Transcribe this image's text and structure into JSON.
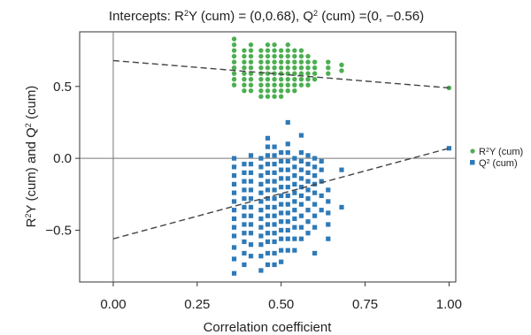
{
  "chart_data": {
    "type": "scatter",
    "title": {
      "segments": [
        {
          "t": "Intercepts: R"
        },
        {
          "t": "2",
          "sup": true
        },
        {
          "t": "Y (cum) = (0,0.68), Q"
        },
        {
          "t": "2",
          "sup": true
        },
        {
          "t": " (cum) =(0, −0.56)"
        }
      ]
    },
    "xlabel": "Correlation coefficient",
    "ylabel": {
      "segments": [
        {
          "t": "R"
        },
        {
          "t": "2",
          "sup": true
        },
        {
          "t": "Y (cum) and Q"
        },
        {
          "t": "2",
          "sup": true
        },
        {
          "t": " (cum)"
        }
      ]
    },
    "xlim": [
      -0.1,
      1.02
    ],
    "ylim": [
      -0.86,
      0.88
    ],
    "xticks": [
      {
        "value": 0.0,
        "label": "0.00"
      },
      {
        "value": 0.25,
        "label": "0.25"
      },
      {
        "value": 0.5,
        "label": "0.50"
      },
      {
        "value": 0.75,
        "label": "0.75"
      },
      {
        "value": 1.0,
        "label": "1.00"
      }
    ],
    "yticks": [
      {
        "value": 0.5,
        "label": "0.5"
      },
      {
        "value": 0.0,
        "label": "0.0"
      },
      {
        "value": -0.5,
        "label": "−0.5"
      }
    ],
    "reference_lines": {
      "x": 0,
      "y": 0
    },
    "legend_position": "right",
    "series": [
      {
        "label": {
          "segments": [
            {
              "t": "R"
            },
            {
              "t": "2",
              "sup": true
            },
            {
              "t": "Y (cum)"
            }
          ]
        },
        "marker": "circle",
        "color": "#4caf50",
        "regression": {
          "intercept": 0.68,
          "end": [
            1.0,
            0.49
          ]
        },
        "columns": [
          {
            "x": 0.36,
            "y": [
              0.83,
              0.79,
              0.75,
              0.71,
              0.67,
              0.63,
              0.59,
              0.55,
              0.51
            ]
          },
          {
            "x": 0.39,
            "y": [
              0.75,
              0.71,
              0.67,
              0.63,
              0.59,
              0.55,
              0.51,
              0.47
            ]
          },
          {
            "x": 0.41,
            "y": [
              0.79,
              0.75,
              0.71,
              0.67,
              0.63,
              0.59,
              0.55,
              0.51,
              0.47
            ]
          },
          {
            "x": 0.44,
            "y": [
              0.75,
              0.71,
              0.67,
              0.63,
              0.59,
              0.55,
              0.51,
              0.47,
              0.43
            ]
          },
          {
            "x": 0.46,
            "y": [
              0.79,
              0.75,
              0.71,
              0.67,
              0.63,
              0.59,
              0.55,
              0.51,
              0.47,
              0.43
            ]
          },
          {
            "x": 0.48,
            "y": [
              0.79,
              0.75,
              0.71,
              0.67,
              0.63,
              0.59,
              0.55,
              0.51,
              0.47,
              0.43
            ]
          },
          {
            "x": 0.5,
            "y": [
              0.75,
              0.71,
              0.67,
              0.63,
              0.59,
              0.55,
              0.51,
              0.47,
              0.43
            ]
          },
          {
            "x": 0.52,
            "y": [
              0.79,
              0.75,
              0.71,
              0.67,
              0.63,
              0.59,
              0.55,
              0.51,
              0.47
            ]
          },
          {
            "x": 0.54,
            "y": [
              0.75,
              0.71,
              0.67,
              0.63,
              0.59,
              0.55,
              0.51,
              0.47
            ]
          },
          {
            "x": 0.56,
            "y": [
              0.75,
              0.71,
              0.67,
              0.63,
              0.59,
              0.55,
              0.51
            ]
          },
          {
            "x": 0.58,
            "y": [
              0.71,
              0.67,
              0.63,
              0.59,
              0.55,
              0.51
            ]
          },
          {
            "x": 0.6,
            "y": [
              0.67,
              0.63,
              0.59,
              0.55
            ]
          },
          {
            "x": 0.64,
            "y": [
              0.67,
              0.63,
              0.59
            ]
          },
          {
            "x": 0.68,
            "y": [
              0.65,
              0.61
            ]
          },
          {
            "x": 1.0,
            "y": [
              0.49
            ]
          }
        ]
      },
      {
        "label": {
          "segments": [
            {
              "t": "Q"
            },
            {
              "t": "2",
              "sup": true
            },
            {
              "t": " (cum)"
            }
          ]
        },
        "marker": "square",
        "color": "#2e7ab8",
        "regression": {
          "intercept": -0.56,
          "end": [
            1.0,
            0.07
          ]
        },
        "columns": [
          {
            "x": 0.36,
            "y": [
              0.0,
              -0.06,
              -0.12,
              -0.18,
              -0.24,
              -0.3,
              -0.36,
              -0.42,
              -0.48,
              -0.54,
              -0.62,
              -0.7,
              -0.8
            ]
          },
          {
            "x": 0.39,
            "y": [
              -0.04,
              -0.1,
              -0.16,
              -0.22,
              -0.28,
              -0.34,
              -0.4,
              -0.46,
              -0.52,
              -0.58,
              -0.66,
              -0.74
            ]
          },
          {
            "x": 0.41,
            "y": [
              0.02,
              -0.04,
              -0.1,
              -0.16,
              -0.22,
              -0.28,
              -0.34,
              -0.4,
              -0.46,
              -0.52,
              -0.6,
              -0.68
            ]
          },
          {
            "x": 0.44,
            "y": [
              0.0,
              -0.06,
              -0.12,
              -0.18,
              -0.24,
              -0.3,
              -0.36,
              -0.42,
              -0.48,
              -0.54,
              -0.6,
              -0.68,
              -0.78
            ]
          },
          {
            "x": 0.46,
            "y": [
              0.14,
              0.08,
              0.02,
              -0.04,
              -0.1,
              -0.16,
              -0.22,
              -0.28,
              -0.34,
              -0.4,
              -0.46,
              -0.52,
              -0.58,
              -0.66,
              -0.74
            ]
          },
          {
            "x": 0.48,
            "y": [
              0.08,
              0.02,
              -0.04,
              -0.1,
              -0.16,
              -0.22,
              -0.28,
              -0.34,
              -0.4,
              -0.46,
              -0.52,
              -0.58,
              -0.66,
              -0.74
            ]
          },
          {
            "x": 0.5,
            "y": [
              0.04,
              -0.02,
              -0.08,
              -0.14,
              -0.2,
              -0.26,
              -0.32,
              -0.38,
              -0.44,
              -0.5,
              -0.56,
              -0.64,
              -0.72
            ]
          },
          {
            "x": 0.52,
            "y": [
              0.25,
              0.1,
              0.04,
              -0.02,
              -0.08,
              -0.14,
              -0.2,
              -0.26,
              -0.32,
              -0.38,
              -0.44,
              -0.5,
              -0.56,
              -0.64
            ]
          },
          {
            "x": 0.54,
            "y": [
              0.0,
              -0.06,
              -0.12,
              -0.18,
              -0.24,
              -0.3,
              -0.36,
              -0.42,
              -0.48,
              -0.56,
              -0.64
            ]
          },
          {
            "x": 0.56,
            "y": [
              0.16,
              0.04,
              -0.02,
              -0.08,
              -0.14,
              -0.2,
              -0.26,
              -0.32,
              -0.4,
              -0.48,
              -0.56
            ]
          },
          {
            "x": 0.58,
            "y": [
              0.02,
              -0.04,
              -0.1,
              -0.16,
              -0.22,
              -0.28,
              -0.36,
              -0.44,
              -0.52
            ]
          },
          {
            "x": 0.6,
            "y": [
              0.0,
              -0.06,
              -0.12,
              -0.18,
              -0.24,
              -0.32,
              -0.4,
              -0.48,
              -0.66
            ]
          },
          {
            "x": 0.62,
            "y": [
              -0.02,
              -0.08,
              -0.16,
              -0.26,
              -0.36
            ]
          },
          {
            "x": 0.64,
            "y": [
              -0.22,
              -0.3,
              -0.38,
              -0.46,
              -0.56
            ]
          },
          {
            "x": 0.68,
            "y": [
              -0.08,
              -0.34
            ]
          },
          {
            "x": 1.0,
            "y": [
              0.07
            ]
          }
        ]
      }
    ]
  }
}
